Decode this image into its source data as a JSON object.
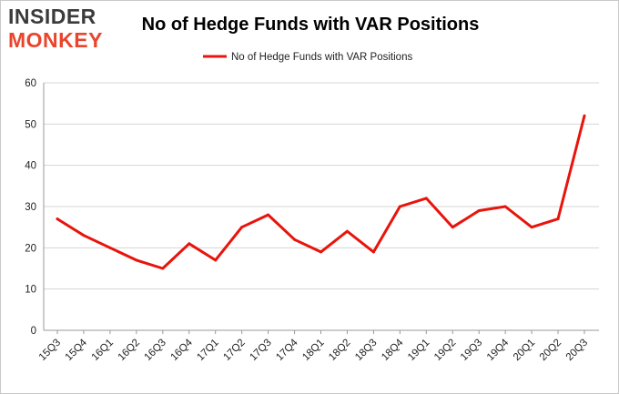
{
  "logo": {
    "top": "INSIDER",
    "bottom": "MONKEY"
  },
  "colors": {
    "line": "#e8140c",
    "grid": "#d4d4d4",
    "axis": "#999999"
  },
  "chart_data": {
    "type": "line",
    "title": "No of Hedge Funds with VAR Positions",
    "categories": [
      "15Q3",
      "15Q4",
      "16Q1",
      "16Q2",
      "16Q3",
      "16Q4",
      "17Q1",
      "17Q2",
      "17Q3",
      "17Q4",
      "18Q1",
      "18Q2",
      "18Q3",
      "18Q4",
      "19Q1",
      "19Q2",
      "19Q3",
      "19Q4",
      "20Q1",
      "20Q2",
      "20Q3"
    ],
    "series": [
      {
        "name": "No of Hedge Funds with VAR Positions",
        "values": [
          27,
          23,
          20,
          17,
          15,
          21,
          17,
          25,
          28,
          22,
          19,
          24,
          19,
          30,
          32,
          25,
          29,
          30,
          25,
          27,
          52
        ]
      }
    ],
    "ylim": [
      0,
      60
    ],
    "yticks": [
      0,
      10,
      20,
      30,
      40,
      50,
      60
    ],
    "grid": true,
    "legend": "top-center"
  }
}
